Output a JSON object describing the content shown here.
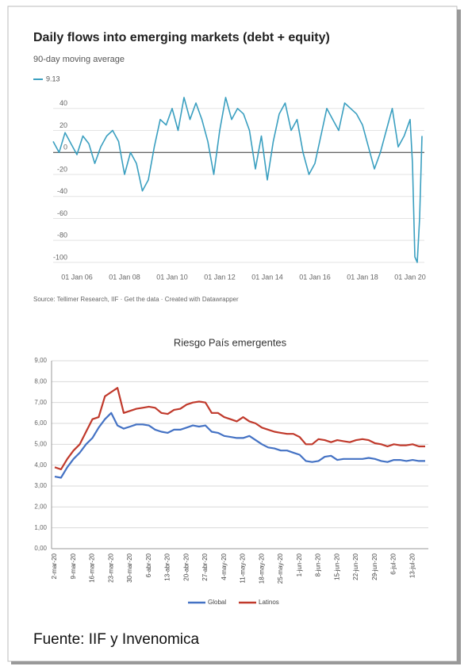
{
  "chart_data": [
    {
      "type": "line",
      "title": "Daily flows into emerging markets (debt + equity)",
      "subtitle": "90-day moving average",
      "source": "Source: Tellimer Research, IIF · Get the data · Created with Datawrapper",
      "x": [
        2005.0,
        2005.25,
        2005.5,
        2005.75,
        2006.0,
        2006.25,
        2006.5,
        2006.75,
        2007.0,
        2007.25,
        2007.5,
        2007.75,
        2008.0,
        2008.25,
        2008.5,
        2008.75,
        2009.0,
        2009.25,
        2009.5,
        2009.75,
        2010.0,
        2010.25,
        2010.5,
        2010.75,
        2011.0,
        2011.25,
        2011.5,
        2011.75,
        2012.0,
        2012.25,
        2012.5,
        2012.75,
        2013.0,
        2013.25,
        2013.5,
        2013.75,
        2014.0,
        2014.25,
        2014.5,
        2014.75,
        2015.0,
        2015.25,
        2015.5,
        2015.75,
        2016.0,
        2016.25,
        2016.5,
        2016.75,
        2017.0,
        2017.25,
        2017.5,
        2017.75,
        2018.0,
        2018.25,
        2018.5,
        2018.75,
        2019.0,
        2019.25,
        2019.5,
        2019.75,
        2020.0,
        2020.1,
        2020.2,
        2020.3,
        2020.4,
        2020.5
      ],
      "series": [
        {
          "name": "9.13",
          "color": "#3a9fc0",
          "values": [
            10,
            0,
            18,
            8,
            -2,
            15,
            8,
            -10,
            5,
            15,
            20,
            10,
            -20,
            0,
            -10,
            -35,
            -25,
            5,
            30,
            25,
            40,
            20,
            50,
            30,
            45,
            30,
            10,
            -20,
            20,
            50,
            30,
            40,
            35,
            20,
            -15,
            15,
            -25,
            10,
            35,
            45,
            20,
            30,
            0,
            -20,
            -10,
            15,
            40,
            30,
            20,
            45,
            40,
            35,
            25,
            5,
            -15,
            0,
            20,
            40,
            5,
            15,
            30,
            -10,
            -95,
            -100,
            -60,
            15
          ]
        }
      ],
      "xlim": [
        2005,
        2020.6
      ],
      "xticks": [
        {
          "value": 2006,
          "label": "01 Jan 06"
        },
        {
          "value": 2008,
          "label": "01 Jan 08"
        },
        {
          "value": 2010,
          "label": "01 Jan 10"
        },
        {
          "value": 2012,
          "label": "01 Jan 12"
        },
        {
          "value": 2014,
          "label": "01 Jan 14"
        },
        {
          "value": 2016,
          "label": "01 Jan 16"
        },
        {
          "value": 2018,
          "label": "01 Jan 18"
        },
        {
          "value": 2020,
          "label": "01 Jan 20"
        }
      ],
      "ylim": [
        -108,
        55
      ],
      "yticks": [
        -100,
        -80,
        -60,
        -40,
        -20,
        0,
        20,
        40
      ],
      "grid": true
    },
    {
      "type": "line",
      "title": "Riesgo País emergentes",
      "categories": [
        "2-mar-20",
        null,
        null,
        "9-mar-20",
        null,
        null,
        "16-mar-20",
        null,
        null,
        "23-mar-20",
        null,
        null,
        "30-mar-20",
        null,
        null,
        "6-abr-20",
        null,
        null,
        "13-abr-20",
        null,
        null,
        "20-abr-20",
        null,
        null,
        "27-abr-20",
        null,
        null,
        "4-may-20",
        null,
        null,
        "11-may-20",
        null,
        null,
        "18-may-20",
        null,
        null,
        "25-may-20",
        null,
        null,
        "1-jun-20",
        null,
        null,
        "8-jun-20",
        null,
        null,
        "15-jun-20",
        null,
        null,
        "22-jun-20",
        null,
        null,
        "29-jun-20",
        null,
        null,
        "6-jul-20",
        null,
        null,
        "13-jul-20",
        null,
        null
      ],
      "series": [
        {
          "name": "Global",
          "color": "#4472c4",
          "values": [
            3.45,
            3.4,
            3.9,
            4.3,
            4.6,
            5.0,
            5.3,
            5.8,
            6.2,
            6.5,
            5.9,
            5.75,
            5.85,
            5.95,
            5.95,
            5.9,
            5.7,
            5.6,
            5.55,
            5.7,
            5.7,
            5.8,
            5.9,
            5.85,
            5.9,
            5.6,
            5.55,
            5.4,
            5.35,
            5.3,
            5.3,
            5.4,
            5.2,
            5.0,
            4.85,
            4.8,
            4.7,
            4.7,
            4.6,
            4.5,
            4.2,
            4.15,
            4.2,
            4.4,
            4.45,
            4.25,
            4.3,
            4.3,
            4.3,
            4.3,
            4.35,
            4.3,
            4.2,
            4.15,
            4.25,
            4.25,
            4.2,
            4.25,
            4.2,
            4.2
          ]
        },
        {
          "name": "Latinos",
          "color": "#c0392b",
          "values": [
            3.9,
            3.8,
            4.3,
            4.7,
            5.0,
            5.6,
            6.2,
            6.3,
            7.3,
            7.5,
            7.7,
            6.5,
            6.6,
            6.7,
            6.75,
            6.8,
            6.75,
            6.5,
            6.45,
            6.65,
            6.7,
            6.9,
            7.0,
            7.05,
            7.0,
            6.5,
            6.5,
            6.3,
            6.2,
            6.1,
            6.3,
            6.1,
            6.0,
            5.8,
            5.7,
            5.6,
            5.55,
            5.5,
            5.5,
            5.35,
            5.0,
            5.0,
            5.25,
            5.2,
            5.1,
            5.2,
            5.15,
            5.1,
            5.2,
            5.25,
            5.2,
            5.05,
            5.0,
            4.9,
            5.0,
            4.95,
            4.95,
            5.0,
            4.9,
            4.9
          ]
        }
      ],
      "ylim": [
        0,
        9
      ],
      "yticks": [
        {
          "value": 0,
          "label": "0,00"
        },
        {
          "value": 1,
          "label": "1,00"
        },
        {
          "value": 2,
          "label": "2,00"
        },
        {
          "value": 3,
          "label": "3,00"
        },
        {
          "value": 4,
          "label": "4,00"
        },
        {
          "value": 5,
          "label": "5,00"
        },
        {
          "value": 6,
          "label": "6,00"
        },
        {
          "value": 7,
          "label": "7,00"
        },
        {
          "value": 8,
          "label": "8,00"
        },
        {
          "value": 9,
          "label": "9,00"
        }
      ],
      "grid": true
    }
  ],
  "footer": "Fuente: IIF y Invenomica"
}
